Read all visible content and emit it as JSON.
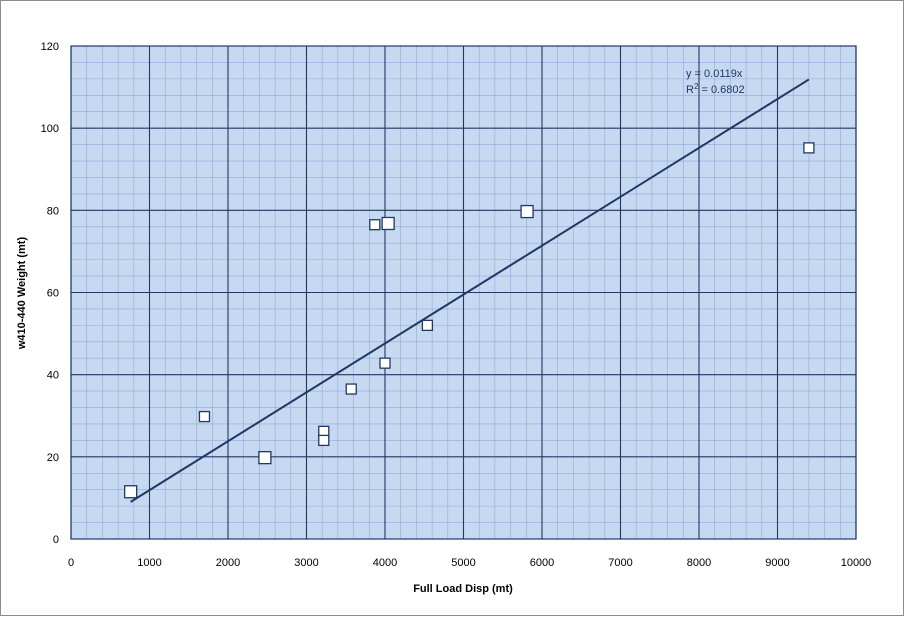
{
  "chart_data": {
    "type": "scatter",
    "title": "",
    "xlabel": "Full Load Disp  (mt)",
    "ylabel": "w410-440 Weight (mt)",
    "xlim": [
      0,
      10000
    ],
    "ylim": [
      0,
      120
    ],
    "x_major_step": 1000,
    "y_major_step": 20,
    "x_minor_step": 200,
    "y_minor_step": 4,
    "x_ticks": [
      "0",
      "1000",
      "2000",
      "3000",
      "4000",
      "5000",
      "6000",
      "7000",
      "8000",
      "9000",
      "10000"
    ],
    "y_ticks": [
      "0",
      "20",
      "40",
      "60",
      "80",
      "100",
      "120"
    ],
    "grid": true,
    "legend": false,
    "colors": {
      "plot_background": "#c6d9f1",
      "major_grid": "#1f3864",
      "minor_grid": "#8eaadb",
      "trendline": "#1f3864",
      "marker_fill": "#ffffff",
      "marker_stroke": "#1f3864"
    },
    "series": [
      {
        "x": [
          760,
          1700,
          2470,
          3220,
          3220,
          3570,
          3870,
          4000,
          4040,
          4540,
          5810,
          9400
        ],
        "y": [
          11.5,
          29.8,
          19.8,
          26.2,
          24.0,
          36.5,
          76.5,
          42.8,
          76.8,
          52.0,
          79.7,
          95.2
        ],
        "marker_size": [
          12,
          10,
          12,
          10,
          10,
          10,
          10,
          10,
          12,
          10,
          12,
          10
        ]
      }
    ],
    "trendline": {
      "slope": 0.0119,
      "x_range": [
        760,
        9400
      ],
      "equation": "y = 0.0119x",
      "r2_label": "R",
      "r2_exp": "2",
      "r2_value": " = 0.6802"
    }
  }
}
